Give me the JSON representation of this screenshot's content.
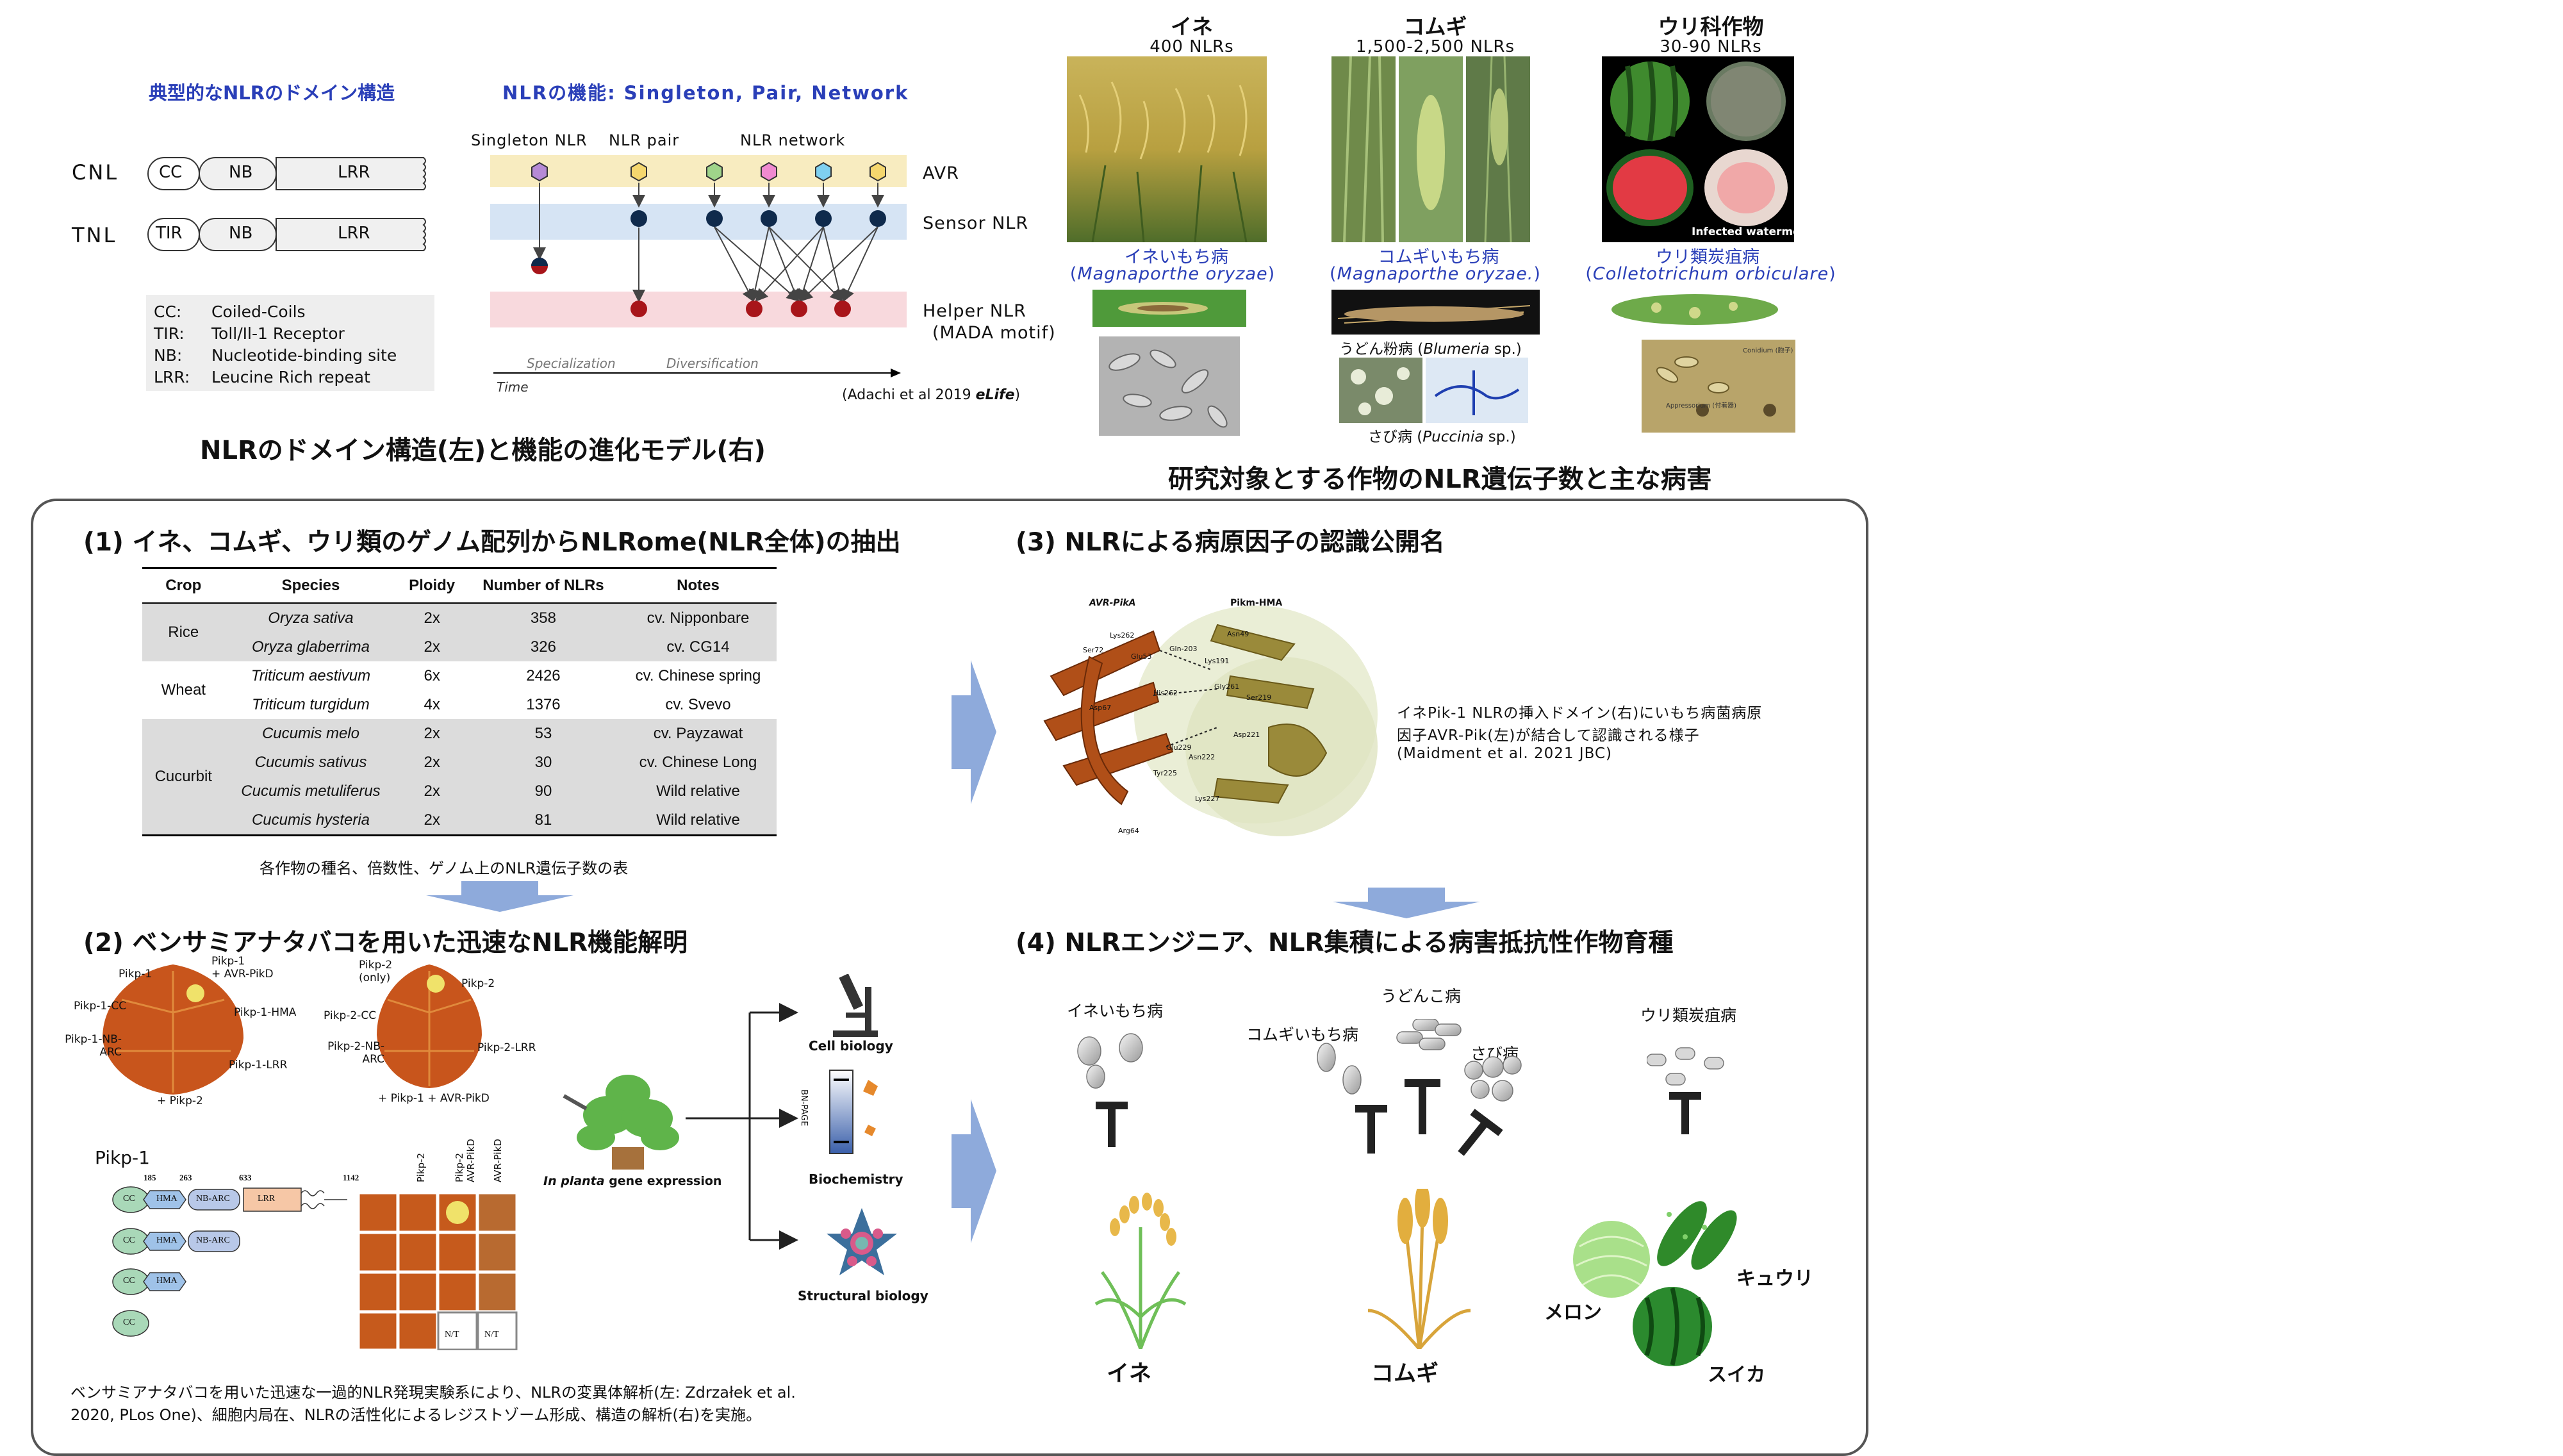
{
  "top_left": {
    "domain_title": "典型的なNLRのドメイン構造",
    "function_title": "NLRの機能: Singleton, Pair, Network",
    "cnl_label": "CNL",
    "tnl_label": "TNL",
    "cc": "CC",
    "nb": "NB",
    "lrr": "LRR",
    "tir": "TIR",
    "legend": [
      {
        "abbr": "CC:",
        "text": "Coiled-Coils"
      },
      {
        "abbr": "TIR:",
        "text": "Toll/Il-1 Receptor"
      },
      {
        "abbr": "NB:",
        "text": "Nucleotide-binding site"
      },
      {
        "abbr": "LRR:",
        "text": "Leucine Rich repeat"
      }
    ],
    "singleton": "Singleton NLR",
    "pair": "NLR pair",
    "network": "NLR network",
    "avr": "AVR",
    "sensor": "Sensor NLR",
    "helper": "Helper NLR",
    "mada": "(MADA motif)",
    "specialization": "Specialization",
    "diversification": "Diversification",
    "time": "Time",
    "citation": "(Adachi et al 2019 ",
    "citation_journal": "eLife",
    "citation_end": ")",
    "caption": "NLRのドメイン構造(左)と機能の進化モデル(右)"
  },
  "crops": [
    {
      "name": "イネ",
      "count": "400 NLRs",
      "disease": "イネいもち病",
      "pathogen": "Magnaporthe oryzae"
    },
    {
      "name": "コムギ",
      "count": "1,500-2,500 NLRs",
      "disease": "コムギいもち病",
      "pathogen": "Magnaporthe oryzae."
    },
    {
      "name": "ウリ科作物",
      "count": "30-90 NLRs",
      "disease": "ウリ類炭疽病",
      "pathogen": "Colletotrichum orbiculare"
    }
  ],
  "crop_extra": {
    "infected": "Infected watermelon",
    "powdery": "うどん粉病 (",
    "powdery_sp": "Blumeria",
    "powdery_end": " sp.)",
    "rust": "さび病 (",
    "rust_sp": "Puccinia",
    "rust_end": " sp.)",
    "conidium": "Conidium (胞子)",
    "appressorium": "Appressorium (付着器)",
    "caption": "研究対象とする作物のNLR遺伝子数と主な病害"
  },
  "section1": {
    "title": "(1) イネ、コムギ、ウリ類のゲノム配列からNLRome(NLR全体)の抽出",
    "headers": [
      "Crop",
      "Species",
      "Ploidy",
      "Number of NLRs",
      "Notes"
    ],
    "groups": [
      {
        "crop": "Rice",
        "rows": [
          {
            "species": "Oryza sativa",
            "ploidy": "2x",
            "n": "358",
            "notes": "cv. Nipponbare"
          },
          {
            "species": "Oryza glaberrima",
            "ploidy": "2x",
            "n": "326",
            "notes": "cv. CG14"
          }
        ]
      },
      {
        "crop": "Wheat",
        "rows": [
          {
            "species": "Triticum aestivum",
            "ploidy": "6x",
            "n": "2426",
            "notes": "cv. Chinese spring"
          },
          {
            "species": "Triticum turgidum",
            "ploidy": "4x",
            "n": "1376",
            "notes": "cv. Svevo"
          }
        ]
      },
      {
        "crop": "Cucurbit",
        "rows": [
          {
            "species": "Cucumis melo",
            "ploidy": "2x",
            "n": "53",
            "notes": "cv. Payzawat"
          },
          {
            "species": "Cucumis sativus",
            "ploidy": "2x",
            "n": "30",
            "notes": "cv. Chinese Long"
          },
          {
            "species": "Cucumis  metuliferus",
            "ploidy": "2x",
            "n": "90",
            "notes": "Wild relative"
          },
          {
            "species": "Cucumis hysteria",
            "ploidy": "2x",
            "n": "81",
            "notes": "Wild relative"
          }
        ]
      }
    ],
    "caption": "各作物の種名、倍数性、ゲノム上のNLR遺伝子数の表"
  },
  "section2": {
    "title": "(2) ベンサミアナタバコを用いた迅速なNLR機能解明",
    "leaf1_labels": [
      "Pikp-1",
      "Pikp-1-CC",
      "Pikp-1-NB-ARC",
      "Pikp-1\n+ AVR-PikD",
      "Pikp-1-HMA",
      "Pikp-1-LRR",
      "+ Pikp-2"
    ],
    "leaf2_labels": [
      "Pikp-2\n(only)",
      "Pikp-2-CC",
      "Pikp-2-NB-ARC",
      "Pikp-2",
      "Pikp-2-LRR",
      "+ Pikp-1 + AVR-PikD"
    ],
    "in_planta": "In planta",
    "in_planta_rest": " gene expression",
    "cell_biology": "Cell biology",
    "biochemistry": "Biochemistry",
    "bn_page": "BN-PAGE",
    "structural": "Structural biology",
    "pikp1": "Pikp-1",
    "positions": [
      "185",
      "263",
      "633",
      "1142"
    ],
    "domains": [
      "CC",
      "HMA",
      "NB-ARC",
      "LRR"
    ],
    "col_labels": [
      "Pikp-2",
      "Pikp-2\nAVR-PikD",
      "AVR-PikD"
    ],
    "nt": "N/T",
    "caption_line1": "ベンサミアナタバコを用いた迅速な一過的NLR発現実験系により、NLRの変異体解析(左: Zdrzałek et al.",
    "caption_line2": "2020, PLos One)、細胞内局在、NLRの活性化によるレジストゾーム形成、構造の解析(右)を実施。"
  },
  "section3": {
    "title": "(3) NLRによる病原因子の認識公開名",
    "avr_label": "AVR-PikA",
    "hma_label": "Pikm-HMA",
    "residues": [
      "Lys262",
      "Ser72",
      "Glu53",
      "Gln-203",
      "Asn49",
      "Asp67",
      "Gly261",
      "His262",
      "Tyr225",
      "Arg64",
      "Lys191",
      "Ser219",
      "Asp221",
      "Asn222",
      "Glu229",
      "Lys227"
    ],
    "desc1": "イネPik-1 NLRの挿入ドメイン(右)にいもち病菌病原",
    "desc2": "因子AVR-Pik(左)が結合して認識される様子",
    "desc3": "(Maidment et al. 2021 JBC)"
  },
  "section4": {
    "title": "(4) NLRエンジニア、NLR集積による病害抵抗性作物育種",
    "rice_blast": "イネいもち病",
    "wheat_blast": "コムギいもち病",
    "powdery": "うどんこ病",
    "rust": "さび病",
    "anthracnose": "ウリ類炭疽病",
    "rice": "イネ",
    "wheat": "コムギ",
    "melon": "メロン",
    "cucumber": "キュウリ",
    "watermelon": "スイカ"
  },
  "colors": {
    "title_blue": "#2a3fb8",
    "avr_band": "#f8ecc0",
    "sensor_band": "#d6e4f4",
    "helper_band": "#f8d9dd",
    "sensor_node": "#0f2a4c",
    "helper_node": "#a8151a",
    "arrow_blue": "#8eaadb",
    "leaf_orange": "#c8551c",
    "wheat_gold": "#d8a43a",
    "rice_green": "#6fbf58"
  }
}
